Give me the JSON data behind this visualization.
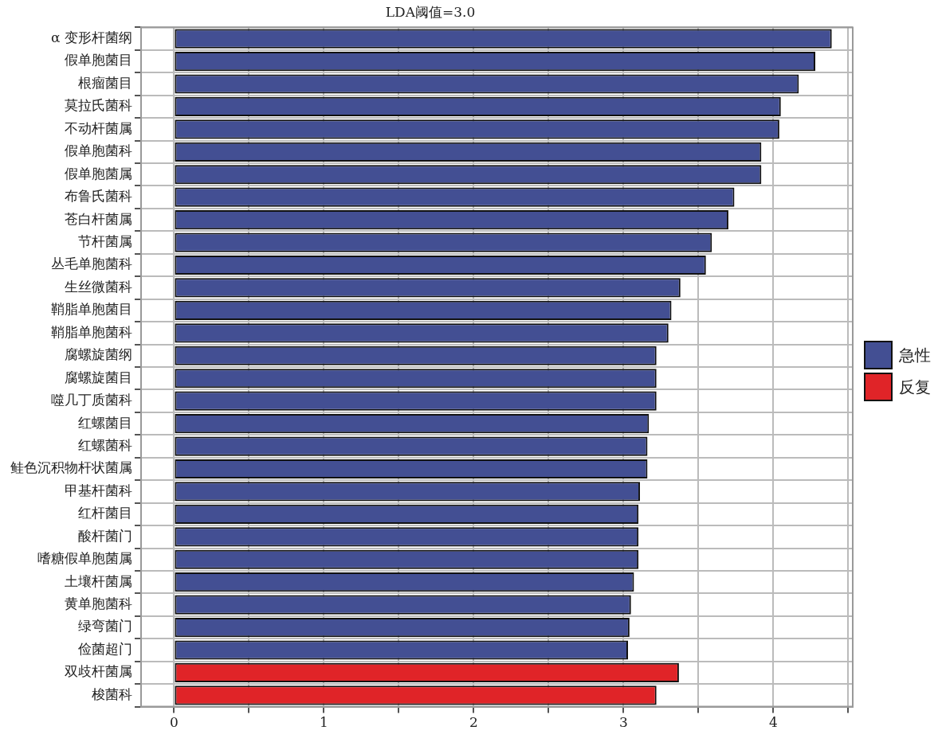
{
  "chart_data": {
    "type": "bar",
    "orientation": "horizontal",
    "title": "LDA阈值=3.0",
    "categories": [
      "α 变形杆菌纲",
      "假单胞菌目",
      "根瘤菌目",
      "莫拉氏菌科",
      "不动杆菌属",
      "假单胞菌科",
      "假单胞菌属",
      "布鲁氏菌科",
      "苍白杆菌属",
      "节杆菌属",
      "丛毛单胞菌科",
      "生丝微菌科",
      "鞘脂单胞菌目",
      "鞘脂单胞菌科",
      "腐螺旋菌纲",
      "腐螺旋菌目",
      "噬几丁质菌科",
      "红螺菌目",
      "红螺菌科",
      "鲑色沉积物杆状菌属",
      "甲基杆菌科",
      "红杆菌目",
      "酸杆菌门",
      "嗜糖假单胞菌属",
      "土壤杆菌属",
      "黄单胞菌科",
      "绿弯菌门",
      "俭菌超门",
      "双歧杆菌属",
      "梭菌科"
    ],
    "series": [
      {
        "name": "急性",
        "color": "#434f93",
        "values": [
          4.39,
          4.28,
          4.17,
          4.05,
          4.04,
          3.92,
          3.92,
          3.74,
          3.7,
          3.59,
          3.55,
          3.38,
          3.32,
          3.3,
          3.22,
          3.22,
          3.22,
          3.17,
          3.16,
          3.16,
          3.11,
          3.1,
          3.1,
          3.1,
          3.07,
          3.05,
          3.04,
          3.03,
          null,
          null
        ]
      },
      {
        "name": "反复",
        "color": "#e02428",
        "values": [
          null,
          null,
          null,
          null,
          null,
          null,
          null,
          null,
          null,
          null,
          null,
          null,
          null,
          null,
          null,
          null,
          null,
          null,
          null,
          null,
          null,
          null,
          null,
          null,
          null,
          null,
          null,
          null,
          3.37,
          3.22
        ]
      }
    ],
    "xlim": [
      -0.22,
      4.53
    ],
    "xticks": [
      0,
      {
        "value": 0.5,
        "label": null
      },
      1,
      {
        "value": 1.5,
        "label": null
      },
      2,
      {
        "value": 2.5,
        "label": null
      },
      3,
      {
        "value": 3.5,
        "label": null
      },
      4,
      {
        "value": 4.5,
        "label": null
      }
    ],
    "grid": true,
    "legend": "right"
  }
}
